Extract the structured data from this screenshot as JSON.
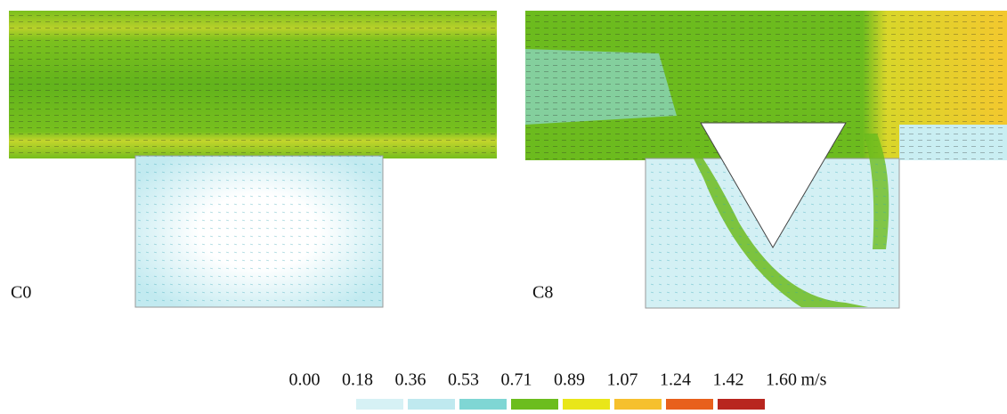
{
  "panels": [
    {
      "label": "C0"
    },
    {
      "label": "C8"
    }
  ],
  "colorbar": {
    "ticks": [
      "0.00",
      "0.18",
      "0.36",
      "0.53",
      "0.71",
      "0.89",
      "1.07",
      "1.24",
      "1.42",
      "1.60"
    ],
    "unit": "m/s",
    "colors": [
      "#d6f1f5",
      "#bfe9ef",
      "#7fd6d4",
      "#6cbd1e",
      "#e9e619",
      "#f6c02d",
      "#e8601c",
      "#b8261f"
    ]
  }
}
